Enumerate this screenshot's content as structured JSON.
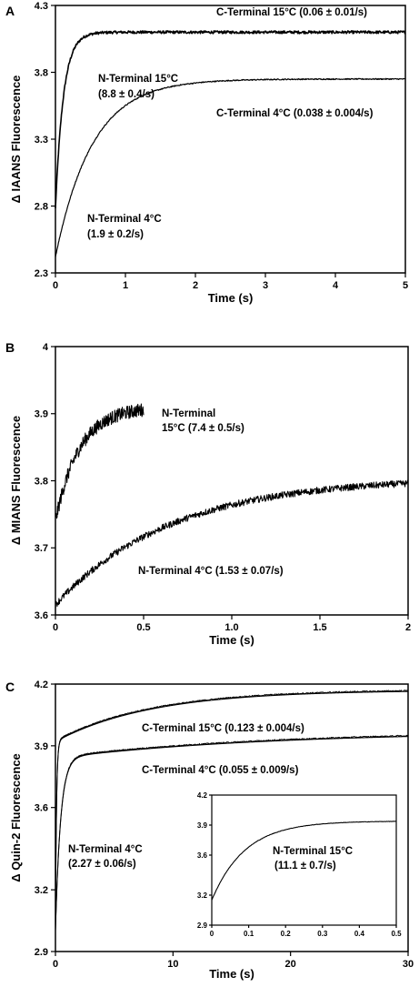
{
  "chart_data": [
    {
      "panel": "A",
      "type": "line",
      "xlabel": "Time (s)",
      "ylabel": "Δ IAANS Fluorescence",
      "xlim": [
        0,
        5
      ],
      "ylim": [
        2.3,
        4.3
      ],
      "xticks": [
        "0",
        "1",
        "2",
        "3",
        "4",
        "5"
      ],
      "yticks": [
        "2.3",
        "2.8",
        "3.3",
        "3.8",
        "4.3"
      ],
      "grid": false,
      "series": [
        {
          "key": "n15",
          "y0": 2.78,
          "amp": 1.32,
          "k": 8.8,
          "noise": 0.01
        },
        {
          "key": "c4",
          "y0": 2.42,
          "amp": 1.33,
          "k": 1.9,
          "noise": 0.004
        }
      ],
      "annotations": [
        {
          "line1": "C-Terminal 15°C (0.06 ± 0.01/s)"
        },
        {
          "line1": "N-Terminal 15°C",
          "line2": "(8.8 ± 0.4/s)"
        },
        {
          "line1": "C-Terminal 4°C (0.038 ± 0.004/s)"
        },
        {
          "line1": "N-Terminal 4°C",
          "line2": "(1.9 ± 0.2/s)"
        }
      ]
    },
    {
      "panel": "B",
      "type": "line",
      "xlabel": "Time (s)",
      "ylabel": "Δ MIANS Fluorescence",
      "xlim": [
        0,
        2
      ],
      "ylim": [
        3.6,
        4.0
      ],
      "xticks": [
        "0",
        "0.5",
        "1.0",
        "1.5",
        "2"
      ],
      "yticks": [
        "3.6",
        "3.7",
        "3.8",
        "3.9",
        "4"
      ],
      "grid": false,
      "series": [
        {
          "key": "n15",
          "x_end": 0.5,
          "y0": 3.74,
          "amp": 0.17,
          "k": 7.4,
          "noise": 0.01
        },
        {
          "key": "n4",
          "x_end": 2.0,
          "y0": 3.615,
          "amp": 0.19,
          "k": 1.53,
          "noise": 0.005
        }
      ],
      "annotations": [
        {
          "line1": "N-Terminal",
          "line2": "15°C (7.4 ± 0.5/s)"
        },
        {
          "line1": "N-Terminal 4°C (1.53 ± 0.07/s)"
        }
      ]
    },
    {
      "panel": "C",
      "type": "line",
      "xlabel": "Time (s)",
      "ylabel": "Δ Quin-2 Fluorescence",
      "xlim": [
        0,
        30
      ],
      "ylim": [
        2.9,
        4.2
      ],
      "xticks": [
        "0",
        "10",
        "20",
        "30"
      ],
      "yticks": [
        "2.9",
        "3.2",
        "3.6",
        "3.9",
        "4.2"
      ],
      "grid": false,
      "series": [
        {
          "key": "c15",
          "y0": 3.0,
          "fast_amp": 0.92,
          "fast_k": 11.1,
          "slow_amp": 0.25,
          "slow_k": 0.123,
          "final": 4.14
        },
        {
          "key": "c4",
          "y0": 3.0,
          "fast_amp": 0.84,
          "fast_k": 2.27,
          "slow_amp": 0.13,
          "slow_k": 0.055,
          "final": 3.96
        }
      ],
      "annotations": [
        {
          "line1": "C-Terminal 15°C (0.123 ± 0.004/s)"
        },
        {
          "line1": "C-Terminal 4°C (0.055 ± 0.009/s)"
        },
        {
          "line1": "N-Terminal 4°C",
          "line2": "(2.27 ± 0.06/s)"
        }
      ],
      "inset": {
        "xlim": [
          0,
          0.5
        ],
        "ylim": [
          2.9,
          4.2
        ],
        "xticks": [
          "0",
          "0.1",
          "0.2",
          "0.3",
          "0.4",
          "0.5"
        ],
        "yticks": [
          "2.9",
          "3.2",
          "3.6",
          "3.9",
          "4.2"
        ],
        "series": {
          "y0": 3.15,
          "amp": 0.79,
          "k": 11.1
        },
        "annotation": {
          "line1": "N-Terminal 15°C",
          "line2": "(11.1 ± 0.7/s)"
        }
      }
    }
  ]
}
